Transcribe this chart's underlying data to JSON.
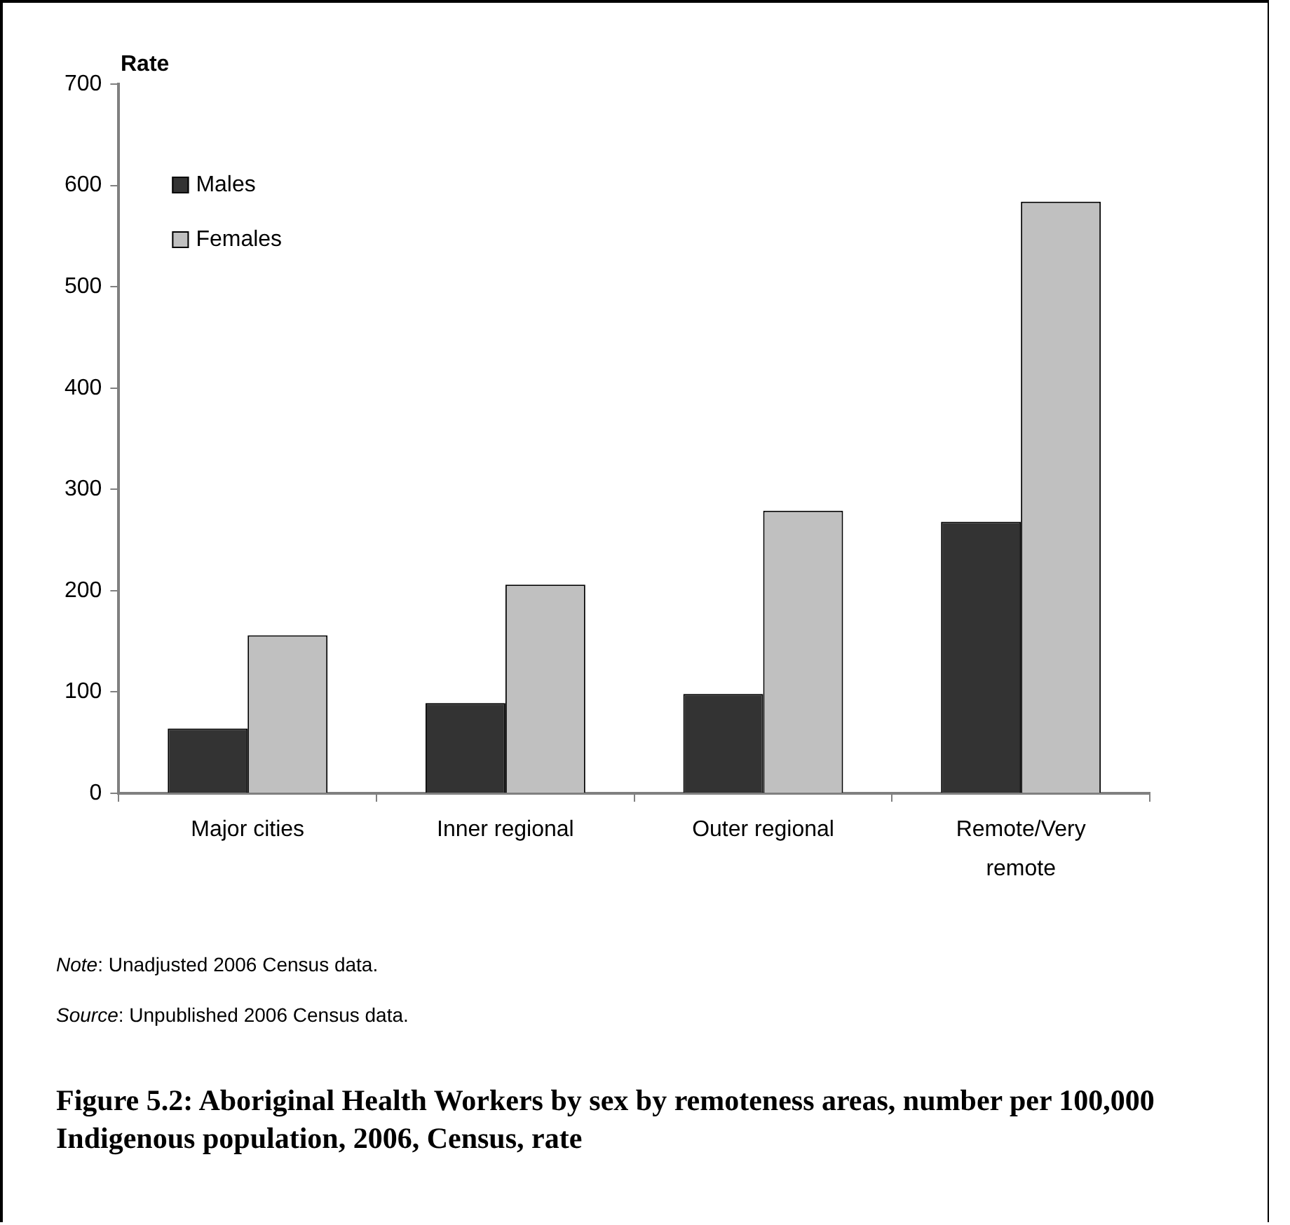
{
  "chart_data": {
    "type": "bar",
    "title": "Figure 5.2: Aboriginal Health Workers by sex by remoteness areas, number per 100,000 Indigenous population, 2006, Census, rate",
    "ylabel": "Rate",
    "categories": [
      "Major cities",
      "Inner regional",
      "Outer regional",
      "Remote/Very remote"
    ],
    "series": [
      {
        "name": "Males",
        "color": "#333333",
        "values": [
          64,
          89,
          98,
          268
        ]
      },
      {
        "name": "Females",
        "color": "#c0c0c0",
        "values": [
          156,
          206,
          279,
          584
        ]
      }
    ],
    "ylim": [
      0,
      700
    ],
    "yticks": [
      0,
      100,
      200,
      300,
      400,
      500,
      600,
      700
    ],
    "grid": false,
    "legend": "top left",
    "annotations": [
      "Note: Unadjusted 2006 Census data.",
      "Source: Unpublished 2006 Census data."
    ]
  }
}
